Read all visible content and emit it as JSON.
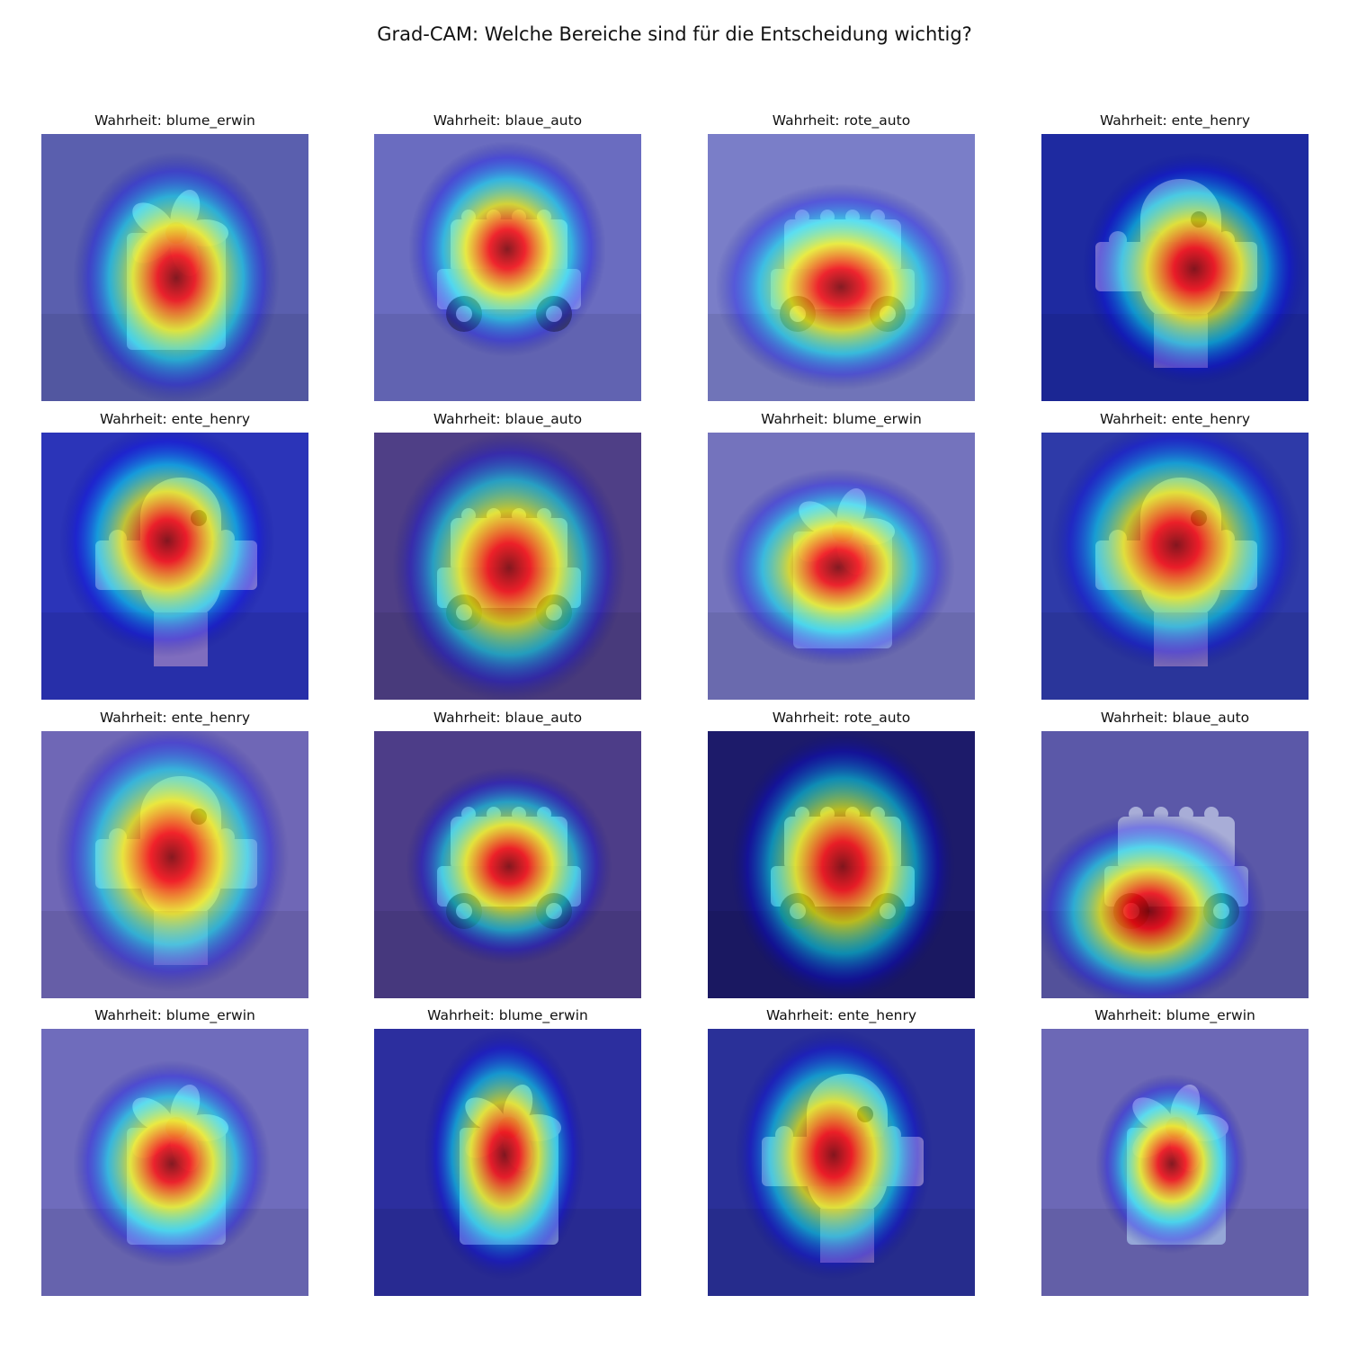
{
  "figure": {
    "title": "Grad-CAM: Welche Bereiche sind für die Entscheidung wichtig?"
  },
  "colormap": {
    "name": "jet",
    "stops": [
      "#00007f",
      "#0000ff",
      "#00ffff",
      "#ffff00",
      "#ff0000",
      "#7f0000"
    ]
  },
  "panels": [
    {
      "caption": "Wahrheit: blume_erwin",
      "scene": "flower",
      "background": "#5a5fae"
    },
    {
      "caption": "Wahrheit: blaue_auto",
      "scene": "car",
      "background": "#6a6cc0"
    },
    {
      "caption": "Wahrheit: rote_auto",
      "scene": "car",
      "background": "#7a7ec8"
    },
    {
      "caption": "Wahrheit: ente_henry",
      "scene": "duck",
      "background": "#1e2aa0"
    },
    {
      "caption": "Wahrheit: ente_henry",
      "scene": "duck",
      "background": "#2b34b8"
    },
    {
      "caption": "Wahrheit: blaue_auto",
      "scene": "car",
      "background": "#4f3f86"
    },
    {
      "caption": "Wahrheit: blume_erwin",
      "scene": "flower",
      "background": "#7473bd"
    },
    {
      "caption": "Wahrheit: ente_henry",
      "scene": "duck",
      "background": "#2e3aa8"
    },
    {
      "caption": "Wahrheit: ente_henry",
      "scene": "duck",
      "background": "#6f67b6"
    },
    {
      "caption": "Wahrheit: blaue_auto",
      "scene": "car",
      "background": "#4d3d88"
    },
    {
      "caption": "Wahrheit: rote_auto",
      "scene": "car",
      "background": "#1d1b6a"
    },
    {
      "caption": "Wahrheit: blaue_auto",
      "scene": "car",
      "background": "#5b58a8"
    },
    {
      "caption": "Wahrheit: blume_erwin",
      "scene": "flower",
      "background": "#6f6cbc"
    },
    {
      "caption": "Wahrheit: blume_erwin",
      "scene": "flower",
      "background": "#2c2e9e"
    },
    {
      "caption": "Wahrheit: ente_henry",
      "scene": "duck",
      "background": "#2a3098"
    },
    {
      "caption": "Wahrheit: blume_erwin",
      "scene": "flower",
      "background": "#6c68b6"
    }
  ]
}
